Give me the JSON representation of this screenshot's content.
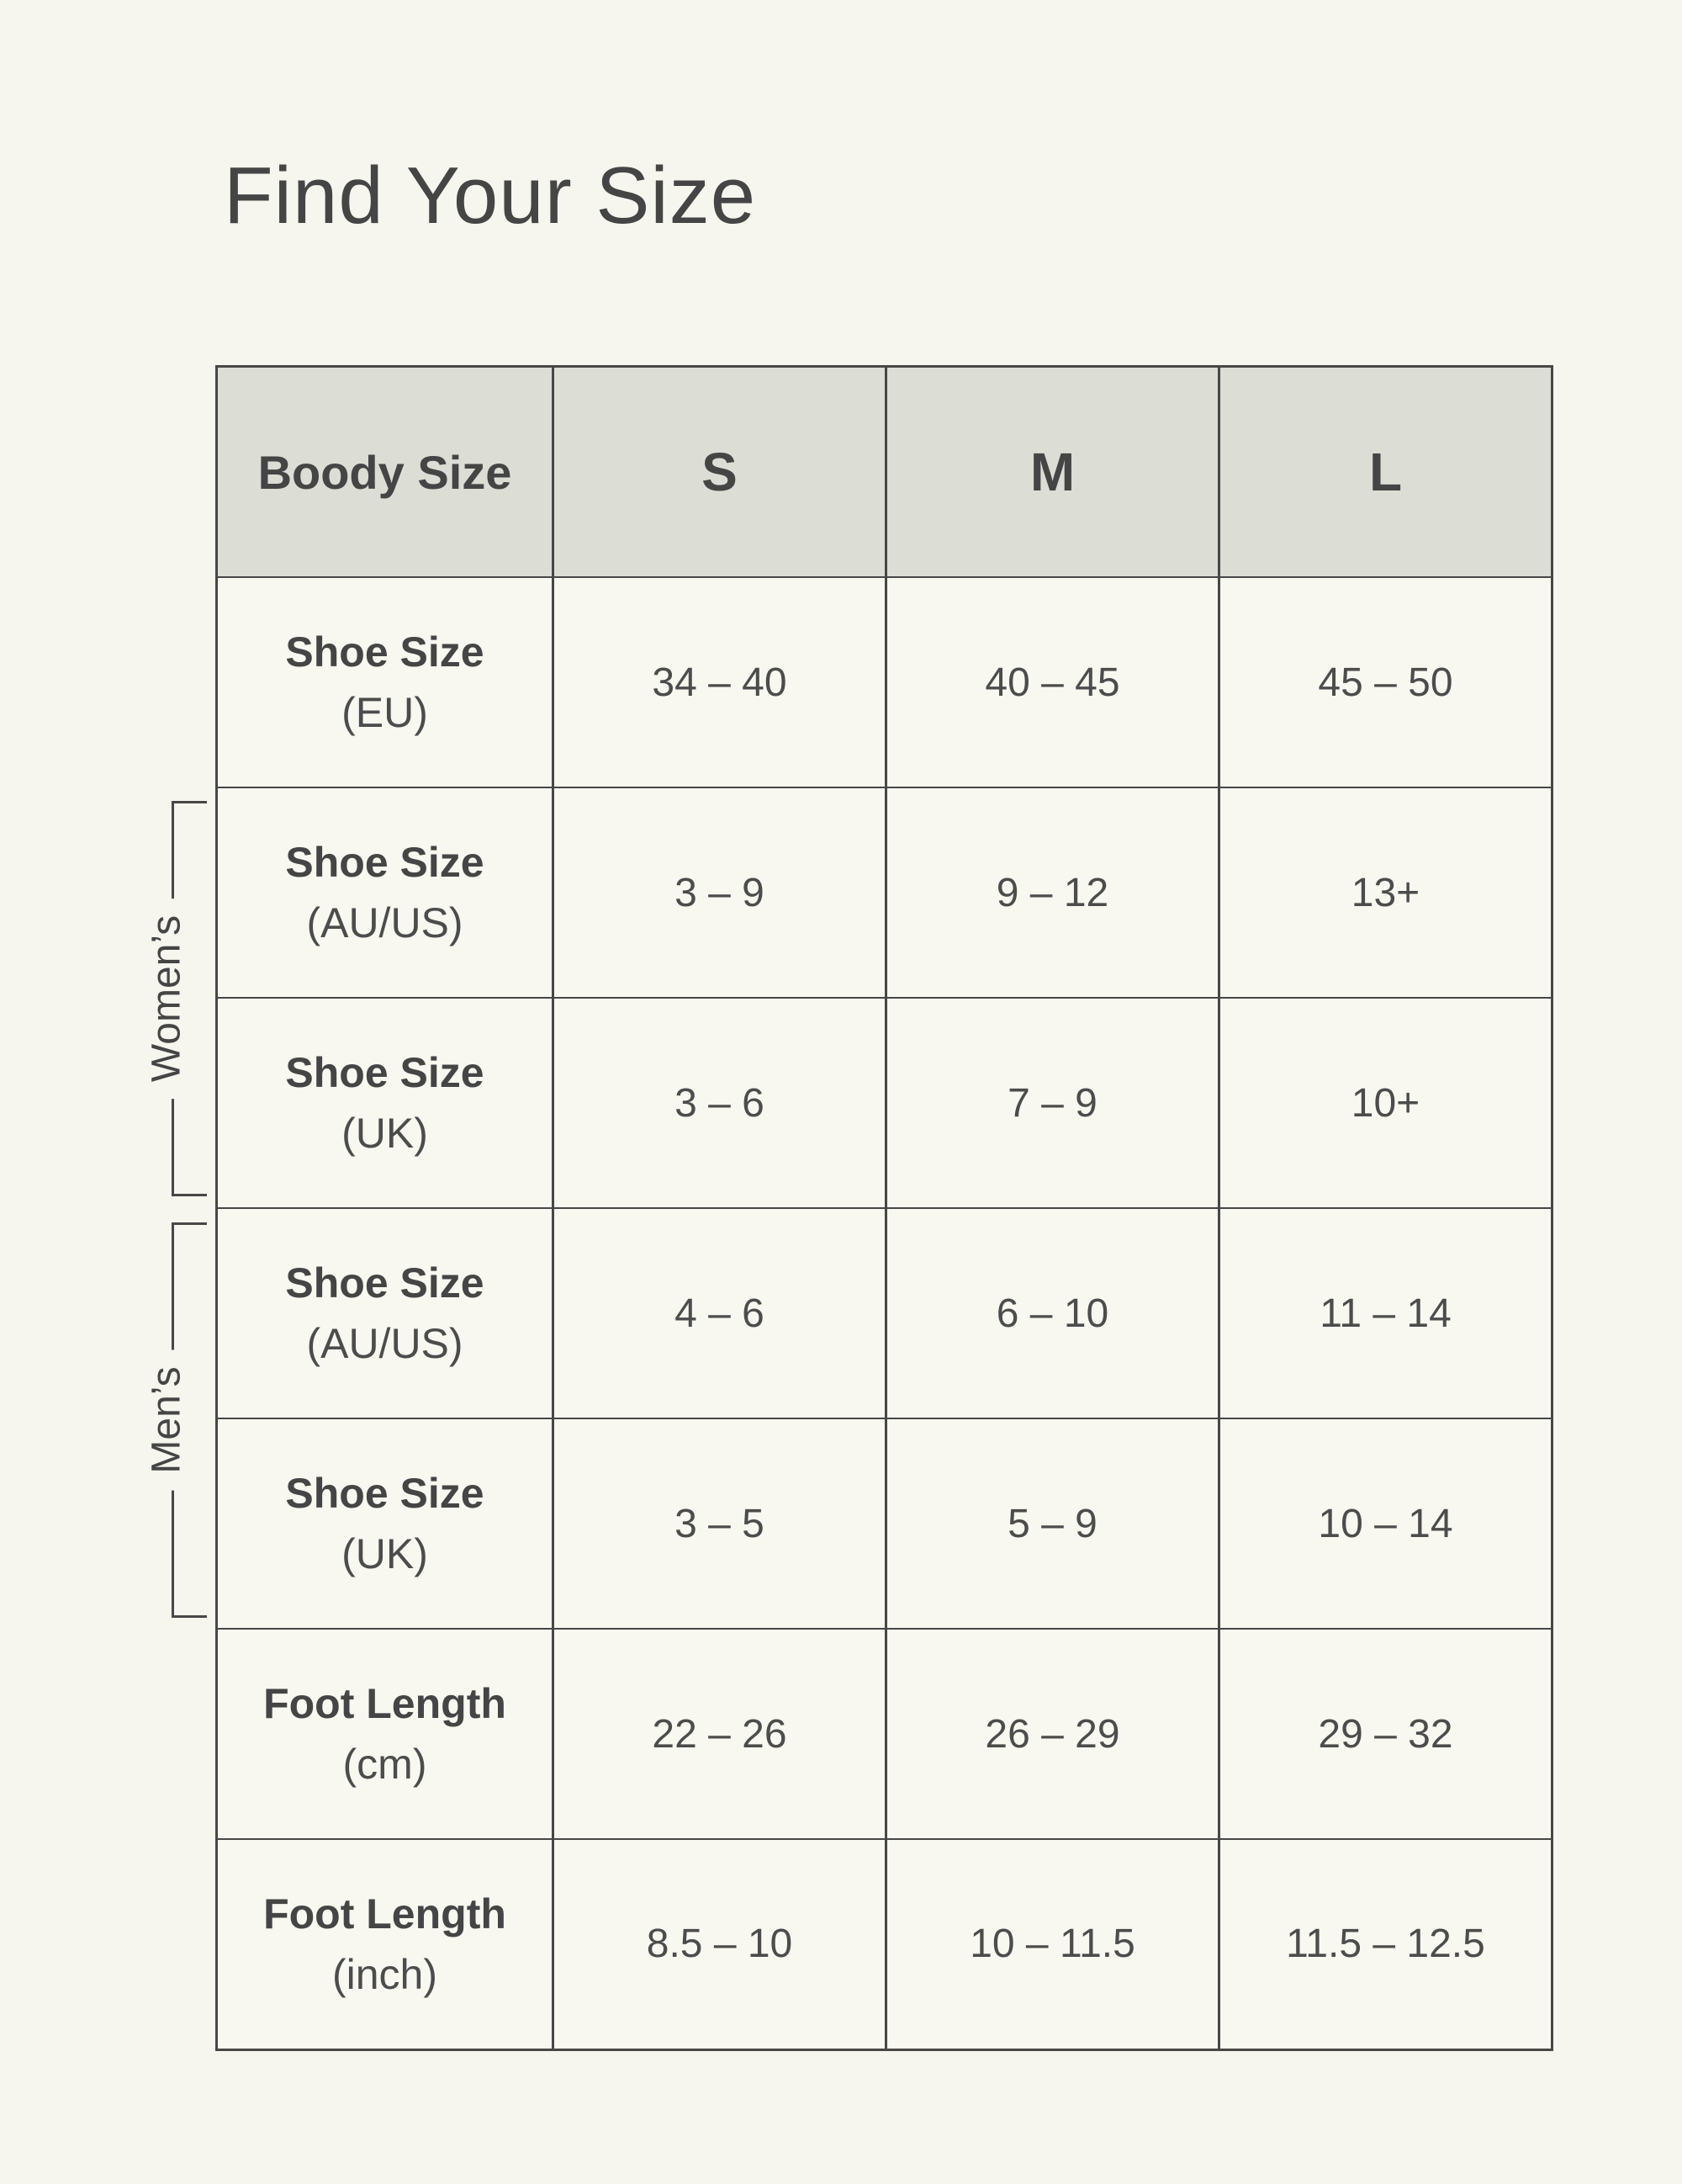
{
  "page": {
    "title": "Find Your Size"
  },
  "colors": {
    "page_bg": "#f6f6ef",
    "cell_bg": "#f8f8f1",
    "header_bg": "#dcddd5",
    "border": "#474747",
    "text": "#4c4c4c",
    "heading": "#454545"
  },
  "groups": [
    {
      "label": "Women’s"
    },
    {
      "label": "Men’s"
    }
  ],
  "table": {
    "header": {
      "label": "Boody Size",
      "sizes": [
        "S",
        "M",
        "L"
      ]
    },
    "rows": [
      {
        "label": "Shoe Size",
        "unit": "(EU)",
        "values": [
          "34 – 40",
          "40 – 45",
          "45 – 50"
        ]
      },
      {
        "label": "Shoe Size",
        "unit": "(AU/US)",
        "values": [
          "3 – 9",
          "9 – 12",
          "13+"
        ]
      },
      {
        "label": "Shoe Size",
        "unit": "(UK)",
        "values": [
          "3 – 6",
          "7 – 9",
          "10+"
        ]
      },
      {
        "label": "Shoe Size",
        "unit": "(AU/US)",
        "values": [
          "4 – 6",
          "6 – 10",
          "11 – 14"
        ]
      },
      {
        "label": "Shoe Size",
        "unit": "(UK)",
        "values": [
          "3 – 5",
          "5 – 9",
          "10 – 14"
        ]
      },
      {
        "label": "Foot Length",
        "unit": "(cm)",
        "values": [
          "22 – 26",
          "26 – 29",
          "29 – 32"
        ]
      },
      {
        "label": "Foot Length",
        "unit": "(inch)",
        "values": [
          "8.5 – 10",
          "10 – 11.5",
          "11.5 – 12.5"
        ]
      }
    ]
  }
}
